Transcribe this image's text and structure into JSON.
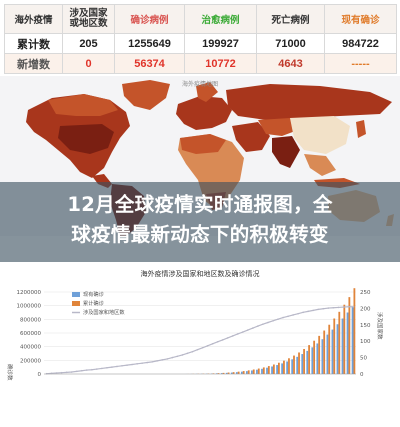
{
  "stats_table": {
    "headers": {
      "region": "海外疫情",
      "countries": [
        "涉及国家",
        "或地区数"
      ],
      "confirmed": "确诊病例",
      "recovered": "治愈病例",
      "deaths": "死亡病例",
      "current": "现有确诊"
    },
    "cumulative": {
      "label": "累计数",
      "countries": "205",
      "confirmed": "1255649",
      "recovered": "199927",
      "deaths": "71000",
      "current": "984722"
    },
    "new": {
      "label": "新增数",
      "countries": "0",
      "confirmed": "56374",
      "recovered": "10772",
      "deaths": "4643",
      "current": "-----"
    }
  },
  "map": {
    "title": "海外疫情地图",
    "colors": {
      "ocean": "#f4f4f6",
      "darkest": "#7a1f12",
      "dark": "#a8361c",
      "mid": "#c4542a",
      "light": "#d98a55",
      "pale": "#eab98c",
      "china": "#f2e1c8"
    }
  },
  "headline": {
    "line1": "12月全球疫情实时通报图，全",
    "line2": "球疫情最新动态下的积极转变"
  },
  "chart_data": {
    "type": "bar",
    "title": "海外疫情涉及国家和地区数及确诊情况",
    "y_left_ticks": [
      "1200000",
      "1000000",
      "800000",
      "600000",
      "400000",
      "200000",
      "0"
    ],
    "ylim_left": [
      0,
      1200000
    ],
    "ylim_right": [
      0,
      250
    ],
    "y_right_ticks": [
      "250",
      "200",
      "150",
      "100",
      "50",
      "0"
    ],
    "y_left_label": "确诊数",
    "y_right_label": "涉及国家数",
    "legend": [
      "现有确诊",
      "累计确诊",
      "涉及国家和地区数"
    ],
    "legend_placement": "top-left",
    "colors": {
      "current": "#6fa0d8",
      "cumulative": "#e0843a",
      "countries": "#b8b8c8"
    },
    "series": [
      {
        "name": "现有确诊",
        "values": [
          0,
          0,
          0,
          0,
          0,
          0,
          0,
          0,
          0,
          0,
          0,
          0,
          0,
          0,
          0,
          0,
          0,
          0,
          0,
          0,
          0,
          0,
          0,
          0,
          0,
          0,
          0,
          0,
          1000,
          2000,
          3000,
          4000,
          5000,
          7000,
          10000,
          13000,
          17000,
          21000,
          27000,
          34000,
          42000,
          52000,
          63000,
          76000,
          92000,
          110000,
          131000,
          155000,
          183000,
          215000,
          251000,
          292000,
          338000,
          390000,
          447000,
          509000,
          577000,
          650000,
          728000,
          812000,
          900000,
          984722
        ]
      },
      {
        "name": "累计确诊",
        "values": [
          0,
          0,
          0,
          0,
          0,
          0,
          0,
          0,
          0,
          0,
          0,
          0,
          0,
          0,
          0,
          0,
          0,
          0,
          0,
          0,
          0,
          0,
          0,
          0,
          0,
          0,
          0,
          0,
          1200,
          2500,
          3700,
          5000,
          6500,
          9000,
          12500,
          16500,
          21500,
          27000,
          34500,
          43000,
          53500,
          66000,
          80000,
          96500,
          116000,
          139000,
          165000,
          195000,
          230000,
          270000,
          315000,
          366000,
          423000,
          487000,
          558000,
          636000,
          721000,
          812000,
          910000,
          1014000,
          1125000,
          1255649
        ]
      },
      {
        "name": "涉及国家和地区数",
        "values": [
          1,
          2,
          3,
          4,
          5,
          6,
          8,
          10,
          12,
          13,
          15,
          17,
          19,
          21,
          23,
          25,
          27,
          29,
          31,
          33,
          35,
          37,
          40,
          43,
          46,
          50,
          54,
          58,
          63,
          68,
          74,
          80,
          86,
          92,
          98,
          104,
          110,
          116,
          122,
          128,
          134,
          140,
          146,
          152,
          157,
          162,
          167,
          172,
          176,
          180,
          184,
          188,
          191,
          194,
          197,
          199,
          201,
          202,
          203,
          204,
          205,
          205
        ]
      }
    ]
  }
}
